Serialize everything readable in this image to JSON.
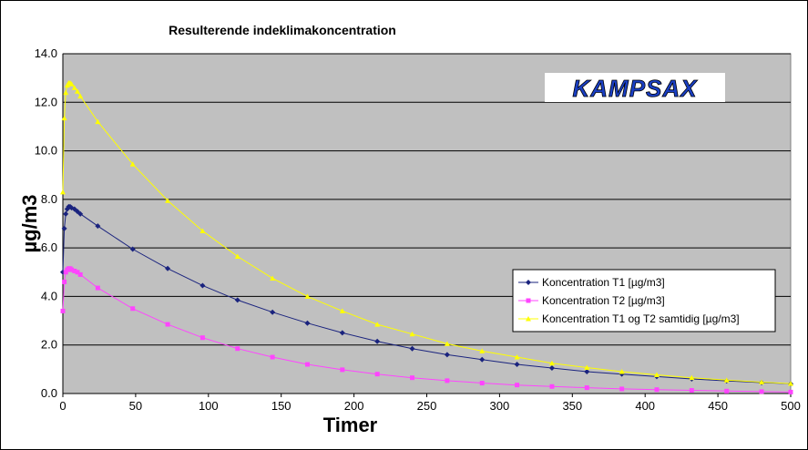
{
  "chart_data": {
    "type": "line",
    "title": "Resulterende indeklimakoncentration",
    "xlabel": "Timer",
    "ylabel": "µg/m3",
    "xlim": [
      0,
      500
    ],
    "ylim": [
      0,
      14
    ],
    "xticks": [
      0,
      50,
      100,
      150,
      200,
      250,
      300,
      350,
      400,
      450,
      500
    ],
    "yticks": [
      "0.0",
      "2.0",
      "4.0",
      "6.0",
      "8.0",
      "10.0",
      "12.0",
      "14.0"
    ],
    "grid": "horizontal",
    "legend_position": "lower-right",
    "background": "#c0c0c0",
    "logo_text": "KAMPSAX",
    "series": [
      {
        "name": "Koncentration T1 [µg/m3]",
        "color": "#1a237e",
        "marker": "diamond",
        "x": [
          0,
          1,
          2,
          3,
          4,
          5,
          6,
          8,
          10,
          12,
          24,
          48,
          72,
          96,
          120,
          144,
          168,
          192,
          216,
          240,
          264,
          288,
          312,
          336,
          360,
          384,
          408,
          432,
          456,
          480,
          500
        ],
        "y": [
          5.0,
          6.8,
          7.4,
          7.6,
          7.7,
          7.7,
          7.65,
          7.6,
          7.5,
          7.4,
          6.9,
          5.95,
          5.15,
          4.45,
          3.85,
          3.35,
          2.9,
          2.5,
          2.15,
          1.85,
          1.6,
          1.4,
          1.2,
          1.05,
          0.9,
          0.8,
          0.7,
          0.6,
          0.52,
          0.45,
          0.4
        ]
      },
      {
        "name": "Koncentration T2 [µg/m3]",
        "color": "#ff44ff",
        "marker": "square",
        "x": [
          0,
          1,
          2,
          3,
          4,
          5,
          6,
          8,
          10,
          12,
          24,
          48,
          72,
          96,
          120,
          144,
          168,
          192,
          216,
          240,
          264,
          288,
          312,
          336,
          360,
          384,
          408,
          432,
          456,
          480,
          500
        ],
        "y": [
          3.4,
          4.6,
          5.0,
          5.1,
          5.15,
          5.15,
          5.1,
          5.05,
          5.0,
          4.9,
          4.35,
          3.5,
          2.85,
          2.3,
          1.85,
          1.5,
          1.2,
          0.98,
          0.8,
          0.65,
          0.53,
          0.43,
          0.35,
          0.29,
          0.24,
          0.19,
          0.16,
          0.13,
          0.1,
          0.08,
          0.06
        ]
      },
      {
        "name": "Koncentration T1 og T2 samtidig [µg/m3]",
        "color": "#ffff00",
        "marker": "triangle",
        "x": [
          0,
          1,
          2,
          3,
          4,
          5,
          6,
          8,
          10,
          12,
          24,
          48,
          72,
          96,
          120,
          144,
          168,
          192,
          216,
          240,
          264,
          288,
          312,
          336,
          360,
          384,
          408,
          432,
          456,
          480,
          500
        ],
        "y": [
          8.3,
          11.35,
          12.4,
          12.7,
          12.8,
          12.8,
          12.75,
          12.6,
          12.45,
          12.25,
          11.2,
          9.45,
          7.95,
          6.7,
          5.65,
          4.75,
          4.0,
          3.4,
          2.85,
          2.45,
          2.05,
          1.75,
          1.5,
          1.25,
          1.07,
          0.9,
          0.77,
          0.65,
          0.55,
          0.47,
          0.41
        ]
      }
    ]
  }
}
